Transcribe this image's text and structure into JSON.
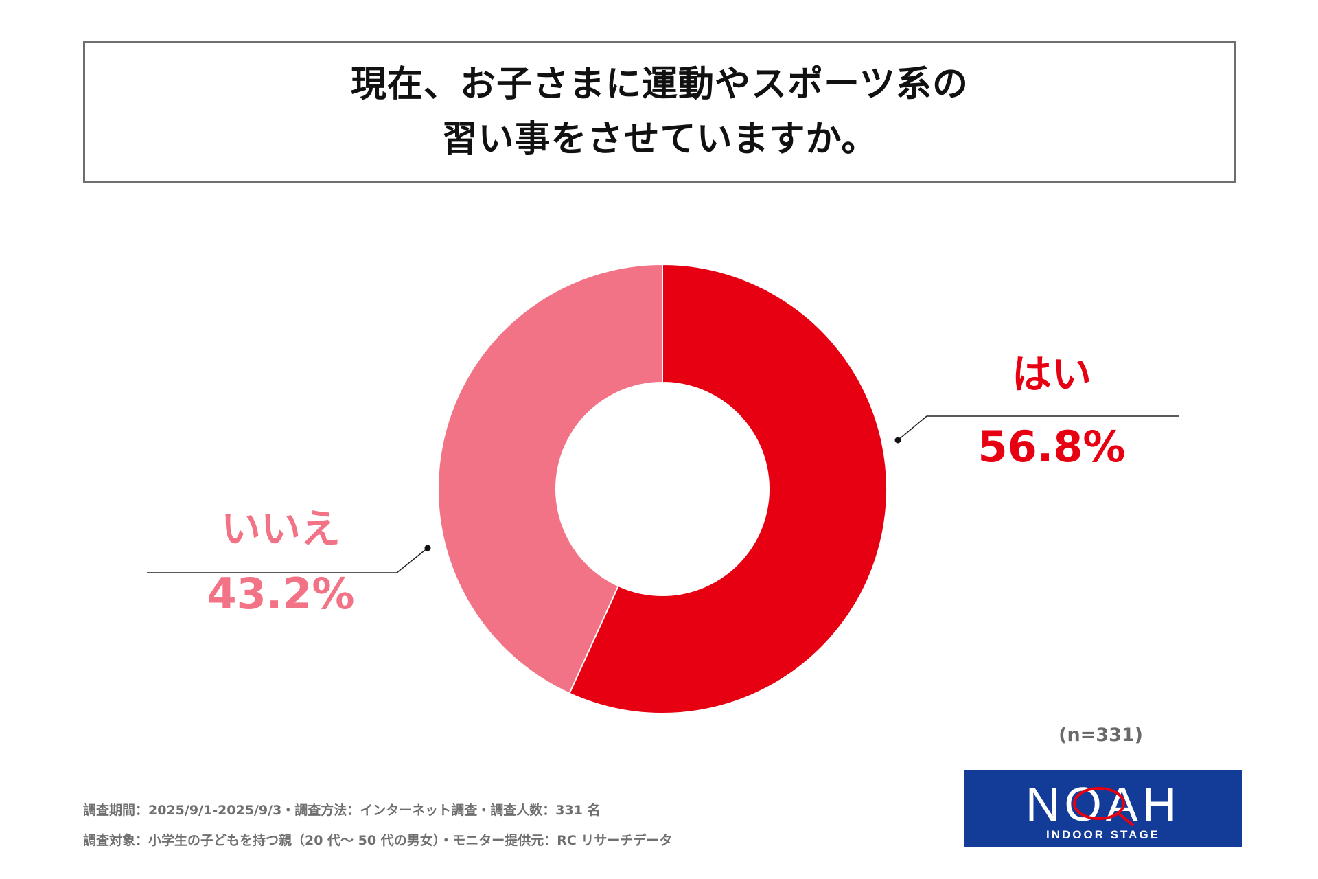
{
  "title": {
    "line1": "現在、お子さまに運動やスポーツ系の",
    "line2": "習い事をさせていますか。"
  },
  "chart_data": {
    "type": "pie",
    "subtype": "donut",
    "slices": [
      {
        "label": "はい",
        "value": 56.8,
        "value_label": "56.8%",
        "color": "#e60012"
      },
      {
        "label": "いいえ",
        "value": 43.2,
        "value_label": "43.2%",
        "color": "#f27386"
      }
    ]
  },
  "sample_size": "(n=331)",
  "notes": {
    "line1": "調査期間：2025/9/1-2025/9/3・調査方法：インターネット調査・調査人数：331 名",
    "line2": "調査対象：小学生の子どもを持つ親（20 代～ 50 代の男女）・モニター提供元：RC リサーチデータ"
  },
  "logo": {
    "brand": "NOAH",
    "sub": "INDOOR STAGE",
    "bg_color": "#133c98"
  }
}
